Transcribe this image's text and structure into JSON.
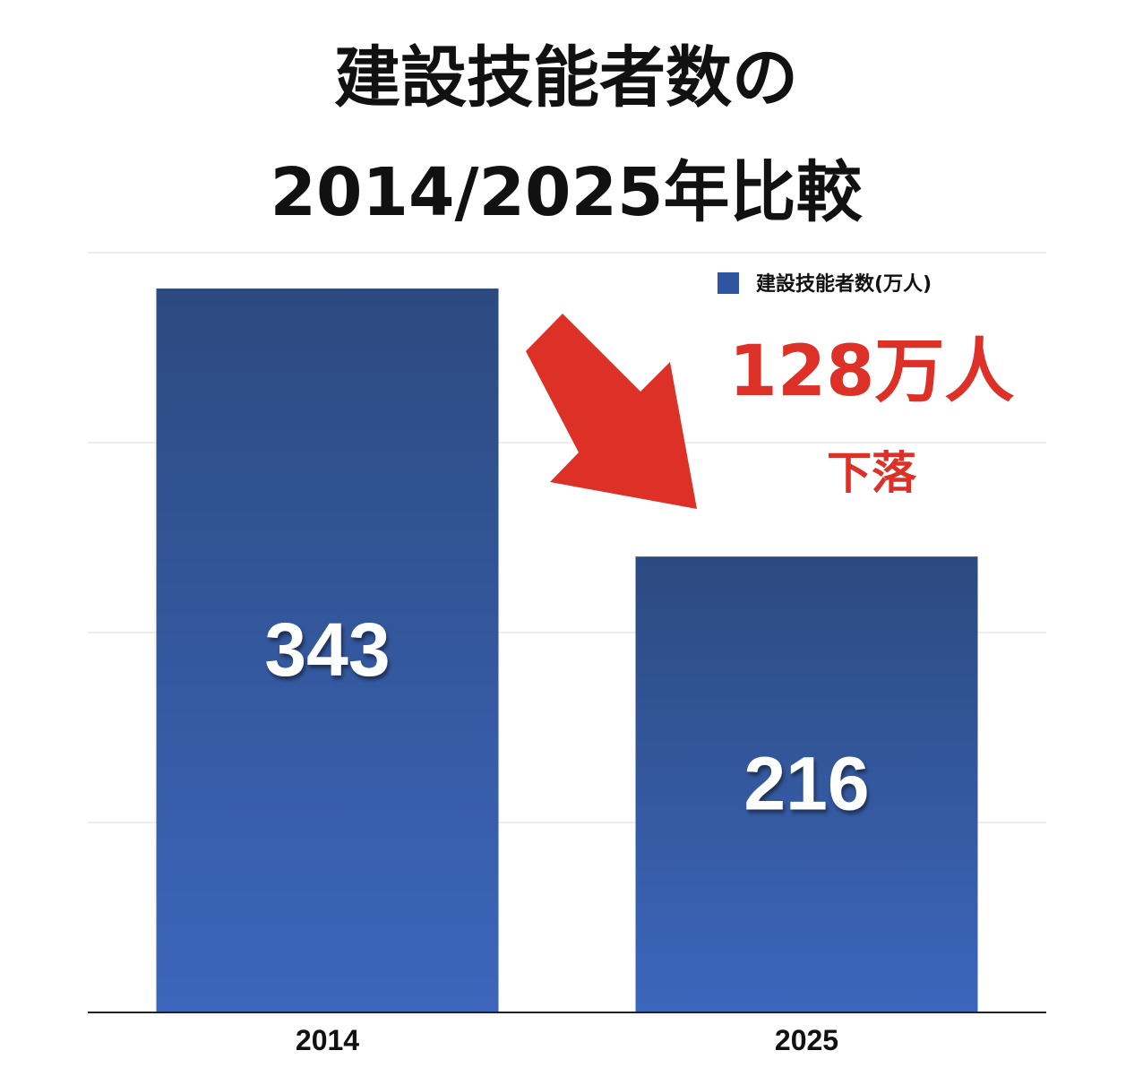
{
  "chart_data": {
    "type": "bar",
    "title_lines": [
      "建設技能者数の",
      "2014/2025年比較"
    ],
    "categories": [
      "2014",
      "2025"
    ],
    "series": [
      {
        "name": "建設技能者数(万人)",
        "values": [
          343,
          216
        ]
      }
    ],
    "ylim": [
      0,
      360
    ],
    "grid": true,
    "legend_position": "top-right",
    "bar_color": "#2f55a0",
    "annotation": {
      "main": "128万人",
      "sub": "下落",
      "color": "#dd3127",
      "icon": "down-right-arrow-icon"
    }
  }
}
